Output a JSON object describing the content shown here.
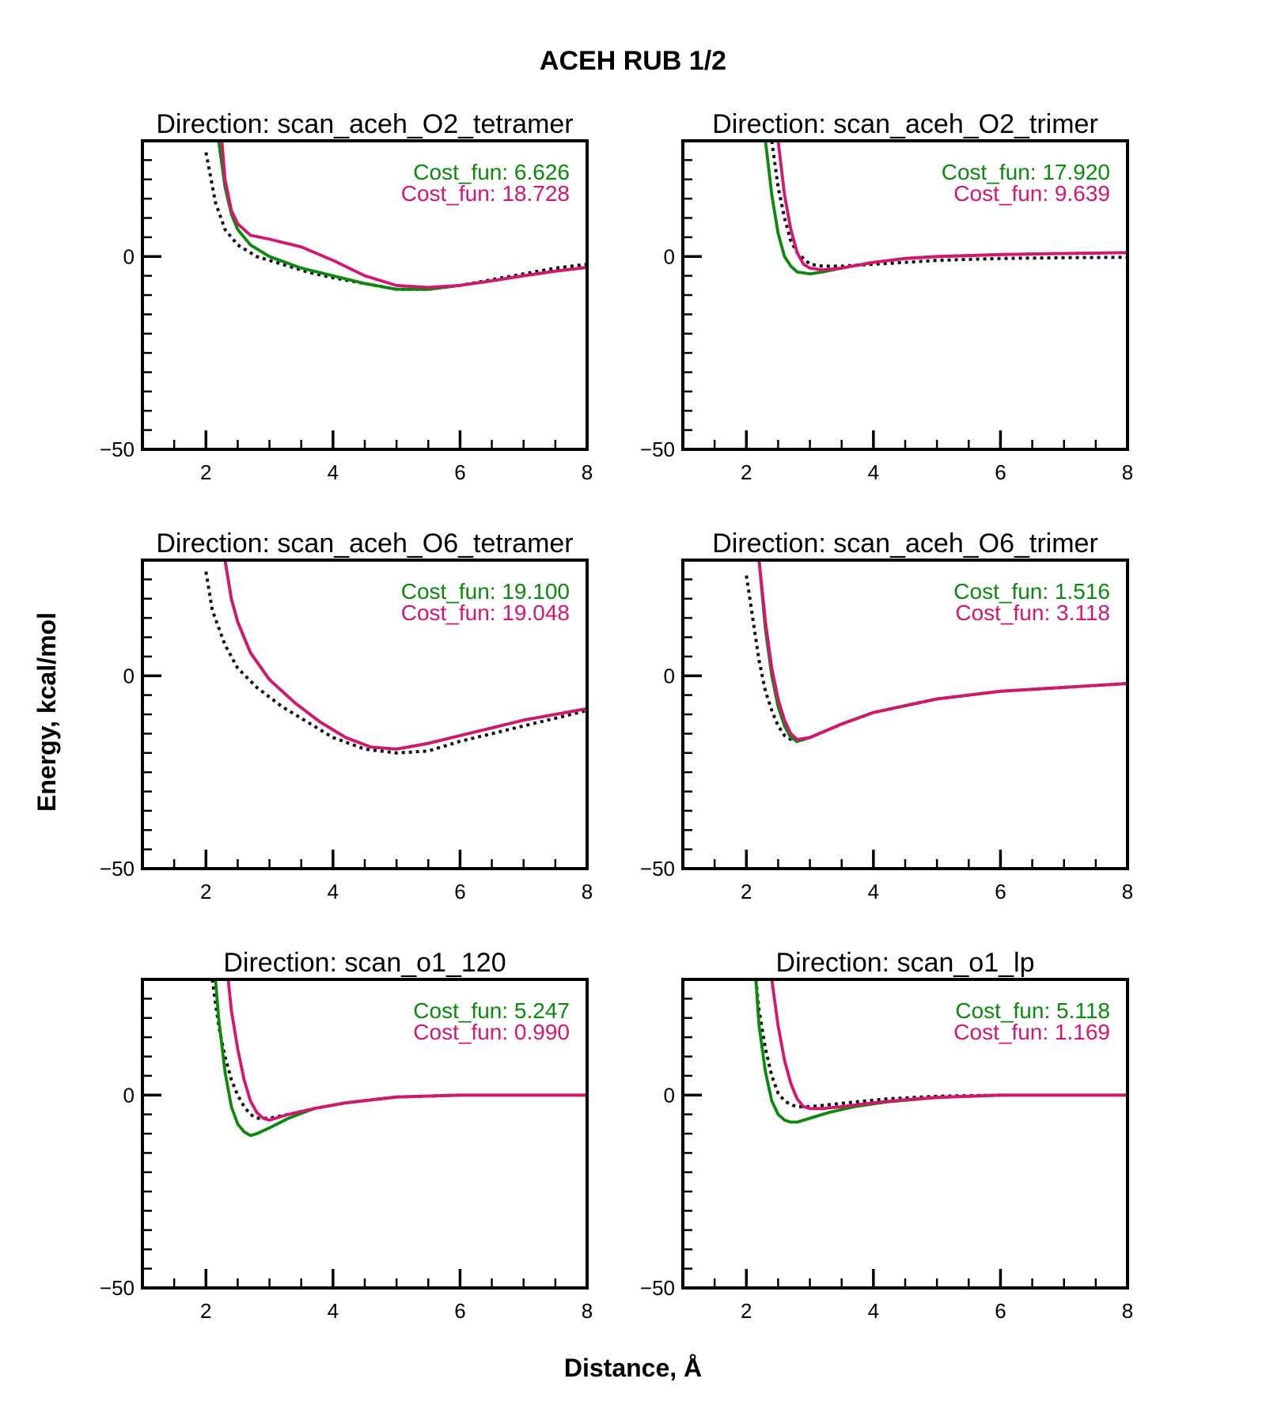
{
  "figure": {
    "title": "ACEH RUB 1/2",
    "xlabel": "Distance, Å",
    "ylabel": "Energy, kcal/mol"
  },
  "colors": {
    "green": "#0a8a0a",
    "magenta": "#d91470",
    "reference": "#111111",
    "axis": "#000000"
  },
  "chart_data": [
    {
      "type": "line",
      "title": "Direction: scan_aceh_O2_tetramer",
      "xlim": [
        1,
        8
      ],
      "ylim": [
        -50,
        30
      ],
      "xticks": [
        2,
        4,
        6,
        8
      ],
      "yticks": [
        -50,
        0
      ],
      "annotations": [
        "Cost_fun: 6.626",
        "Cost_fun: 18.728"
      ],
      "series": [
        {
          "style": "dotted",
          "color": "reference",
          "x": [
            2.0,
            2.15,
            2.3,
            2.5,
            2.8,
            3.2,
            3.6,
            4.0,
            4.5,
            5.0,
            5.5,
            6.0,
            6.5,
            7.0,
            7.5,
            8.0
          ],
          "y": [
            27,
            14,
            7,
            3,
            0,
            -2,
            -4,
            -5.5,
            -7,
            -8.5,
            -8.5,
            -7.5,
            -6,
            -4.5,
            -3,
            -2
          ]
        },
        {
          "style": "solid",
          "color": "green",
          "x": [
            2.2,
            2.3,
            2.4,
            2.5,
            2.7,
            3.0,
            3.5,
            4.0,
            4.5,
            5.0,
            5.5,
            6.0,
            6.5,
            7.0,
            7.5,
            8.0
          ],
          "y": [
            30,
            18,
            11,
            7,
            3,
            0,
            -3,
            -5,
            -7,
            -8.5,
            -8.5,
            -7.5,
            -6.3,
            -5,
            -3.8,
            -2.8
          ]
        },
        {
          "style": "solid",
          "color": "magenta",
          "x": [
            2.25,
            2.3,
            2.4,
            2.5,
            2.7,
            3.0,
            3.5,
            4.0,
            4.5,
            5.0,
            5.5,
            6.0,
            6.5,
            7.0,
            7.5,
            8.0
          ],
          "y": [
            30,
            20,
            12,
            8.5,
            5.5,
            4.5,
            2.5,
            -1,
            -5,
            -7.5,
            -8,
            -7.5,
            -6.3,
            -5,
            -3.8,
            -2.8
          ]
        }
      ]
    },
    {
      "type": "line",
      "title": "Direction: scan_aceh_O2_trimer",
      "xlim": [
        1,
        8
      ],
      "ylim": [
        -50,
        30
      ],
      "xticks": [
        2,
        4,
        6,
        8
      ],
      "yticks": [
        -50,
        0
      ],
      "annotations": [
        "Cost_fun: 17.920",
        "Cost_fun: 9.639"
      ],
      "series": [
        {
          "style": "dotted",
          "color": "reference",
          "x": [
            2.4,
            2.5,
            2.6,
            2.7,
            2.8,
            3.0,
            3.2,
            3.5,
            4.0,
            4.5,
            5.0,
            6.0,
            7.0,
            8.0
          ],
          "y": [
            30,
            18,
            10,
            4,
            1,
            -2,
            -2.5,
            -2.5,
            -2,
            -1.5,
            -1,
            -0.5,
            -0.3,
            -0.2
          ]
        },
        {
          "style": "solid",
          "color": "green",
          "x": [
            2.3,
            2.4,
            2.5,
            2.6,
            2.7,
            2.8,
            3.0,
            3.2,
            3.5,
            4.0,
            4.5,
            5.0,
            6.0,
            7.0,
            8.0
          ],
          "y": [
            30,
            16,
            6,
            0,
            -2.5,
            -4,
            -4.5,
            -4,
            -3,
            -1.5,
            -0.5,
            0,
            0.5,
            0.8,
            1
          ]
        },
        {
          "style": "solid",
          "color": "magenta",
          "x": [
            2.5,
            2.6,
            2.7,
            2.8,
            2.9,
            3.0,
            3.2,
            3.5,
            4.0,
            4.5,
            5.0,
            6.0,
            7.0,
            8.0
          ],
          "y": [
            30,
            16,
            7,
            1,
            -2,
            -3,
            -3.5,
            -3,
            -1.5,
            -0.5,
            0,
            0.5,
            0.8,
            1
          ]
        }
      ]
    },
    {
      "type": "line",
      "title": "Direction: scan_aceh_O6_tetramer",
      "xlim": [
        1,
        8
      ],
      "ylim": [
        -50,
        30
      ],
      "xticks": [
        2,
        4,
        6,
        8
      ],
      "yticks": [
        -50,
        0
      ],
      "annotations": [
        "Cost_fun: 19.100",
        "Cost_fun: 19.048"
      ],
      "series": [
        {
          "style": "dotted",
          "color": "reference",
          "x": [
            2.0,
            2.1,
            2.3,
            2.5,
            2.8,
            3.2,
            3.6,
            4.0,
            4.5,
            5.0,
            5.5,
            6.0,
            6.5,
            7.0,
            7.5,
            8.0
          ],
          "y": [
            27,
            17,
            8,
            2,
            -3,
            -8,
            -12,
            -16,
            -19,
            -20,
            -19.5,
            -17,
            -15,
            -13,
            -11,
            -9
          ]
        },
        {
          "style": "solid",
          "color": "green",
          "x": [
            2.3,
            2.4,
            2.5,
            2.7,
            3.0,
            3.4,
            3.8,
            4.2,
            4.6,
            5.0,
            5.5,
            6.0,
            6.5,
            7.0,
            7.5,
            8.0
          ],
          "y": [
            30,
            20,
            14,
            6,
            -1,
            -7,
            -12,
            -16,
            -18.5,
            -19,
            -17.5,
            -15.5,
            -13.5,
            -11.5,
            -10,
            -8.5
          ]
        },
        {
          "style": "solid",
          "color": "magenta",
          "x": [
            2.3,
            2.4,
            2.5,
            2.7,
            3.0,
            3.4,
            3.8,
            4.2,
            4.6,
            5.0,
            5.5,
            6.0,
            6.5,
            7.0,
            7.5,
            8.0
          ],
          "y": [
            30,
            20,
            14,
            6,
            -1,
            -7,
            -12,
            -16,
            -18.5,
            -19,
            -17.5,
            -15.5,
            -13.5,
            -11.5,
            -10,
            -8.5
          ]
        }
      ]
    },
    {
      "type": "line",
      "title": "Direction: scan_aceh_O6_trimer",
      "xlim": [
        1,
        8
      ],
      "ylim": [
        -50,
        30
      ],
      "xticks": [
        2,
        4,
        6,
        8
      ],
      "yticks": [
        -50,
        0
      ],
      "annotations": [
        "Cost_fun: 1.516",
        "Cost_fun: 3.118"
      ],
      "series": [
        {
          "style": "dotted",
          "color": "reference",
          "x": [
            2.0,
            2.1,
            2.2,
            2.3,
            2.4,
            2.5,
            2.6,
            2.7,
            2.8,
            3.0,
            3.5,
            4.0,
            5.0,
            6.0,
            7.0,
            8.0
          ],
          "y": [
            26,
            15,
            4,
            -4,
            -9,
            -13,
            -15.5,
            -16.5,
            -17,
            -16,
            -12.5,
            -9.5,
            -6,
            -4,
            -3,
            -2
          ]
        },
        {
          "style": "solid",
          "color": "green",
          "x": [
            2.2,
            2.3,
            2.4,
            2.5,
            2.6,
            2.7,
            2.8,
            3.0,
            3.5,
            4.0,
            5.0,
            6.0,
            7.0,
            8.0
          ],
          "y": [
            30,
            12,
            0,
            -8,
            -13,
            -16,
            -17,
            -16,
            -12.5,
            -9.5,
            -6,
            -4,
            -3,
            -2
          ]
        },
        {
          "style": "solid",
          "color": "magenta",
          "x": [
            2.2,
            2.3,
            2.4,
            2.5,
            2.6,
            2.7,
            2.8,
            3.0,
            3.5,
            4.0,
            5.0,
            6.0,
            7.0,
            8.0
          ],
          "y": [
            30,
            14,
            2,
            -6,
            -11.5,
            -15,
            -16.5,
            -16,
            -12.5,
            -9.5,
            -6,
            -4,
            -3,
            -2
          ]
        }
      ]
    },
    {
      "type": "line",
      "title": "Direction: scan_o1_120",
      "xlim": [
        1,
        8
      ],
      "ylim": [
        -50,
        30
      ],
      "xticks": [
        2,
        4,
        6,
        8
      ],
      "yticks": [
        -50,
        0
      ],
      "annotations": [
        "Cost_fun: 5.247",
        "Cost_fun: 0.990"
      ],
      "series": [
        {
          "style": "dotted",
          "color": "reference",
          "x": [
            2.1,
            2.2,
            2.3,
            2.4,
            2.5,
            2.6,
            2.7,
            2.8,
            3.0,
            3.3,
            3.7,
            4.2,
            5.0,
            6.0
          ],
          "y": [
            30,
            18,
            10,
            4,
            0,
            -3,
            -5,
            -6,
            -6,
            -5,
            -3.5,
            -2,
            -0.5,
            0
          ]
        },
        {
          "style": "solid",
          "color": "green",
          "x": [
            2.15,
            2.2,
            2.3,
            2.4,
            2.5,
            2.6,
            2.7,
            2.8,
            3.0,
            3.3,
            3.7,
            4.2,
            5.0,
            6.0,
            7.0,
            8.0
          ],
          "y": [
            30,
            20,
            6,
            -3,
            -7.5,
            -9.5,
            -10.5,
            -10,
            -8.5,
            -6,
            -3.5,
            -2,
            -0.5,
            0,
            0,
            0
          ]
        },
        {
          "style": "solid",
          "color": "magenta",
          "x": [
            2.35,
            2.4,
            2.5,
            2.6,
            2.7,
            2.8,
            2.9,
            3.0,
            3.3,
            3.7,
            4.2,
            5.0,
            6.0,
            7.0,
            8.0
          ],
          "y": [
            30,
            22,
            12,
            4,
            -1.5,
            -4.5,
            -6,
            -6.5,
            -5,
            -3.5,
            -2,
            -0.5,
            0,
            0,
            0
          ]
        }
      ]
    },
    {
      "type": "line",
      "title": "Direction: scan_o1_lp",
      "xlim": [
        1,
        8
      ],
      "ylim": [
        -50,
        30
      ],
      "xticks": [
        2,
        4,
        6,
        8
      ],
      "yticks": [
        -50,
        0
      ],
      "annotations": [
        "Cost_fun: 5.118",
        "Cost_fun: 1.169"
      ],
      "series": [
        {
          "style": "dotted",
          "color": "reference",
          "x": [
            2.15,
            2.2,
            2.3,
            2.4,
            2.5,
            2.6,
            2.7,
            2.8,
            3.0,
            3.3,
            3.7,
            4.2,
            5.0,
            6.0
          ],
          "y": [
            30,
            22,
            12,
            5,
            0.5,
            -1.5,
            -2.5,
            -3,
            -3,
            -2.5,
            -1.8,
            -1,
            -0.3,
            0
          ]
        },
        {
          "style": "solid",
          "color": "green",
          "x": [
            2.15,
            2.2,
            2.3,
            2.4,
            2.5,
            2.6,
            2.7,
            2.8,
            3.0,
            3.3,
            3.7,
            4.2,
            5.0,
            6.0,
            7.0,
            8.0
          ],
          "y": [
            30,
            18,
            6,
            -1.5,
            -5,
            -6.5,
            -7,
            -7,
            -6,
            -4.5,
            -3,
            -1.8,
            -0.6,
            0,
            0,
            0
          ]
        },
        {
          "style": "solid",
          "color": "magenta",
          "x": [
            2.4,
            2.5,
            2.6,
            2.7,
            2.8,
            2.9,
            3.0,
            3.2,
            3.5,
            4.0,
            4.5,
            5.0,
            6.0,
            7.0,
            8.0
          ],
          "y": [
            30,
            18,
            9,
            3,
            -1,
            -3,
            -3.5,
            -3.5,
            -3,
            -2,
            -1.2,
            -0.6,
            0,
            0,
            0
          ]
        }
      ]
    }
  ]
}
